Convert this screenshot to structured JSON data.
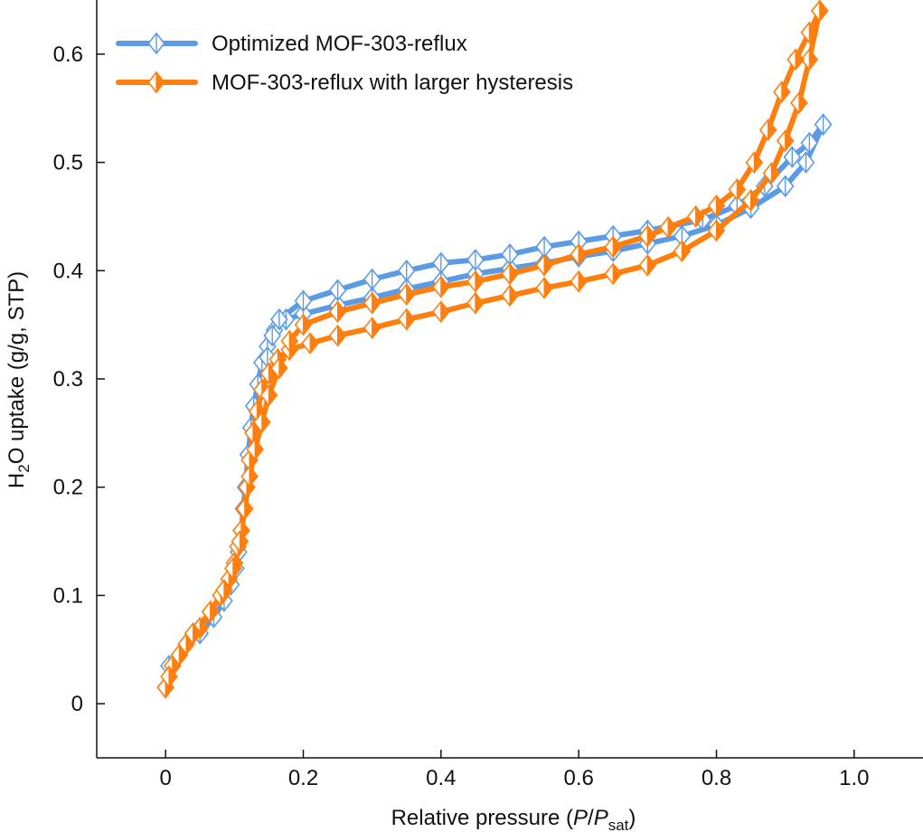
{
  "chart_data": {
    "type": "line",
    "title": "",
    "xlabel_parts": {
      "prefix": "Relative pressure (",
      "p": "P",
      "slash": "/",
      "p2": "P",
      "sub": "sat",
      "suffix": ")"
    },
    "ylabel_parts": {
      "prefix": "H",
      "sub": "2",
      "suffix": "O uptake (g/g, STP)"
    },
    "xlim": [
      -0.1,
      1.1
    ],
    "ylim": [
      -0.05,
      0.65
    ],
    "xticks": [
      {
        "value": 0,
        "label": "0"
      },
      {
        "value": 0.2,
        "label": "0.2"
      },
      {
        "value": 0.4,
        "label": "0.4"
      },
      {
        "value": 0.6,
        "label": "0.6"
      },
      {
        "value": 0.8,
        "label": "0.8"
      },
      {
        "value": 1.0,
        "label": "1.0"
      }
    ],
    "yticks": [
      {
        "value": 0,
        "label": "0"
      },
      {
        "value": 0.1,
        "label": "0.1"
      },
      {
        "value": 0.2,
        "label": "0.2"
      },
      {
        "value": 0.3,
        "label": "0.3"
      },
      {
        "value": 0.4,
        "label": "0.4"
      },
      {
        "value": 0.5,
        "label": "0.5"
      },
      {
        "value": 0.6,
        "label": "0.6"
      }
    ],
    "legend_position": "top-left",
    "series": [
      {
        "name": "Optimized MOF-303-reflux",
        "color": "#5b9be6",
        "marker": "diamond-half-open",
        "adsorption": [
          [
            0.0,
            0.015
          ],
          [
            0.005,
            0.035
          ],
          [
            0.03,
            0.055
          ],
          [
            0.05,
            0.065
          ],
          [
            0.07,
            0.08
          ],
          [
            0.085,
            0.095
          ],
          [
            0.095,
            0.11
          ],
          [
            0.102,
            0.125
          ],
          [
            0.106,
            0.14
          ],
          [
            0.11,
            0.16
          ],
          [
            0.113,
            0.18
          ],
          [
            0.116,
            0.2
          ],
          [
            0.12,
            0.23
          ],
          [
            0.124,
            0.255
          ],
          [
            0.128,
            0.275
          ],
          [
            0.134,
            0.295
          ],
          [
            0.14,
            0.315
          ],
          [
            0.148,
            0.33
          ],
          [
            0.158,
            0.345
          ],
          [
            0.175,
            0.355
          ],
          [
            0.2,
            0.36
          ],
          [
            0.25,
            0.368
          ],
          [
            0.3,
            0.375
          ],
          [
            0.35,
            0.383
          ],
          [
            0.4,
            0.39
          ],
          [
            0.45,
            0.397
          ],
          [
            0.5,
            0.402
          ],
          [
            0.55,
            0.407
          ],
          [
            0.6,
            0.413
          ],
          [
            0.65,
            0.418
          ],
          [
            0.7,
            0.425
          ],
          [
            0.75,
            0.432
          ],
          [
            0.8,
            0.442
          ],
          [
            0.85,
            0.458
          ],
          [
            0.9,
            0.478
          ],
          [
            0.93,
            0.5
          ],
          [
            0.955,
            0.535
          ]
        ],
        "desorption": [
          [
            0.955,
            0.535
          ],
          [
            0.935,
            0.518
          ],
          [
            0.91,
            0.505
          ],
          [
            0.87,
            0.478
          ],
          [
            0.83,
            0.46
          ],
          [
            0.78,
            0.447
          ],
          [
            0.7,
            0.437
          ],
          [
            0.65,
            0.432
          ],
          [
            0.6,
            0.427
          ],
          [
            0.55,
            0.422
          ],
          [
            0.5,
            0.415
          ],
          [
            0.45,
            0.41
          ],
          [
            0.4,
            0.407
          ],
          [
            0.35,
            0.4
          ],
          [
            0.3,
            0.392
          ],
          [
            0.25,
            0.382
          ],
          [
            0.2,
            0.372
          ],
          [
            0.165,
            0.355
          ],
          [
            0.155,
            0.34
          ],
          [
            0.148,
            0.32
          ]
        ]
      },
      {
        "name": "MOF-303-reflux with larger hysteresis",
        "color": "#ff7f0e",
        "marker": "diamond-half-filled",
        "adsorption": [
          [
            0.0,
            0.015
          ],
          [
            0.01,
            0.035
          ],
          [
            0.03,
            0.055
          ],
          [
            0.05,
            0.07
          ],
          [
            0.065,
            0.085
          ],
          [
            0.08,
            0.1
          ],
          [
            0.092,
            0.115
          ],
          [
            0.1,
            0.13
          ],
          [
            0.105,
            0.145
          ],
          [
            0.11,
            0.16
          ],
          [
            0.114,
            0.18
          ],
          [
            0.118,
            0.2
          ],
          [
            0.122,
            0.225
          ],
          [
            0.127,
            0.25
          ],
          [
            0.133,
            0.27
          ],
          [
            0.14,
            0.29
          ],
          [
            0.15,
            0.305
          ],
          [
            0.163,
            0.318
          ],
          [
            0.18,
            0.327
          ],
          [
            0.21,
            0.333
          ],
          [
            0.25,
            0.34
          ],
          [
            0.3,
            0.347
          ],
          [
            0.35,
            0.355
          ],
          [
            0.4,
            0.362
          ],
          [
            0.45,
            0.37
          ],
          [
            0.5,
            0.377
          ],
          [
            0.55,
            0.384
          ],
          [
            0.6,
            0.39
          ],
          [
            0.65,
            0.397
          ],
          [
            0.7,
            0.405
          ],
          [
            0.75,
            0.418
          ],
          [
            0.8,
            0.437
          ],
          [
            0.85,
            0.465
          ],
          [
            0.88,
            0.49
          ],
          [
            0.9,
            0.52
          ],
          [
            0.92,
            0.555
          ],
          [
            0.935,
            0.595
          ],
          [
            0.95,
            0.64
          ]
        ],
        "desorption": [
          [
            0.95,
            0.64
          ],
          [
            0.935,
            0.62
          ],
          [
            0.915,
            0.595
          ],
          [
            0.895,
            0.565
          ],
          [
            0.875,
            0.53
          ],
          [
            0.855,
            0.5
          ],
          [
            0.83,
            0.475
          ],
          [
            0.8,
            0.46
          ],
          [
            0.77,
            0.45
          ],
          [
            0.73,
            0.44
          ],
          [
            0.7,
            0.432
          ],
          [
            0.65,
            0.422
          ],
          [
            0.6,
            0.415
          ],
          [
            0.55,
            0.405
          ],
          [
            0.5,
            0.397
          ],
          [
            0.45,
            0.39
          ],
          [
            0.4,
            0.385
          ],
          [
            0.35,
            0.378
          ],
          [
            0.3,
            0.37
          ],
          [
            0.25,
            0.362
          ],
          [
            0.2,
            0.35
          ],
          [
            0.18,
            0.335
          ],
          [
            0.165,
            0.31
          ],
          [
            0.15,
            0.285
          ],
          [
            0.14,
            0.26
          ],
          [
            0.13,
            0.235
          ],
          [
            0.122,
            0.21
          ],
          [
            0.115,
            0.18
          ],
          [
            0.108,
            0.15
          ],
          [
            0.098,
            0.125
          ],
          [
            0.085,
            0.105
          ],
          [
            0.065,
            0.085
          ],
          [
            0.04,
            0.065
          ],
          [
            0.02,
            0.045
          ],
          [
            0.005,
            0.025
          ]
        ]
      }
    ]
  }
}
